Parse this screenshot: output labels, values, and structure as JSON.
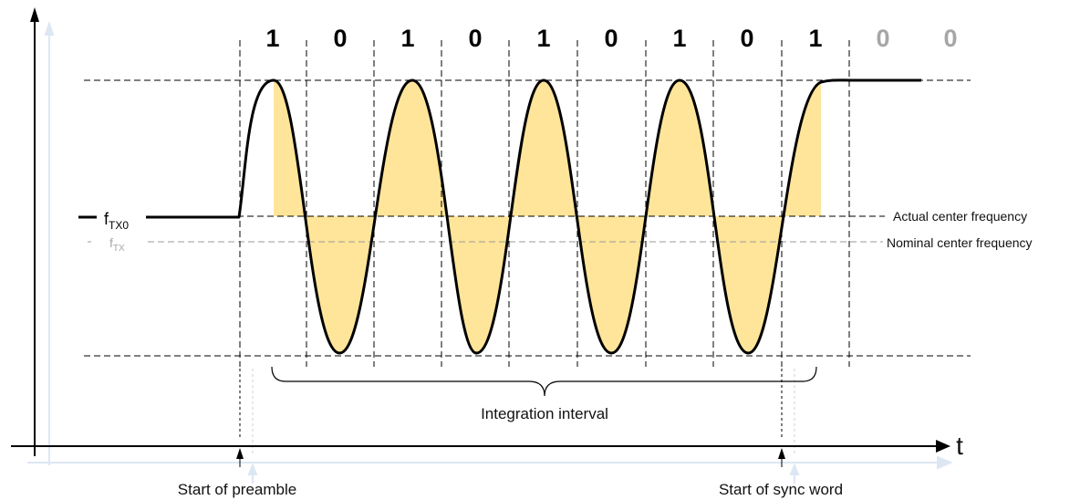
{
  "bits": [
    {
      "value": "1",
      "color": "#000000"
    },
    {
      "value": "0",
      "color": "#000000"
    },
    {
      "value": "1",
      "color": "#000000"
    },
    {
      "value": "0",
      "color": "#000000"
    },
    {
      "value": "1",
      "color": "#000000"
    },
    {
      "value": "0",
      "color": "#000000"
    },
    {
      "value": "1",
      "color": "#000000"
    },
    {
      "value": "0",
      "color": "#000000"
    },
    {
      "value": "1",
      "color": "#000000"
    },
    {
      "value": "0",
      "color": "#a6a6a6"
    },
    {
      "value": "0",
      "color": "#a6a6a6"
    }
  ],
  "legend": {
    "ftx0_main": "f",
    "ftx0_sub": "TX0",
    "ftx_main": "f",
    "ftx_sub": "TX"
  },
  "labels": {
    "actual_center": "Actual center frequency",
    "nominal_center": "Nominal center frequency",
    "integration_interval": "Integration interval",
    "start_preamble": "Start of preamble",
    "start_sync": "Start of sync word",
    "time_axis": "t"
  },
  "colors": {
    "fill": "#ffe59a",
    "signal": "#000000",
    "ghost_axis": "#dde6f3",
    "grey_text": "#a6a6a6",
    "dashed": "#000000",
    "nominal_dashed": "#9a9a9a"
  }
}
